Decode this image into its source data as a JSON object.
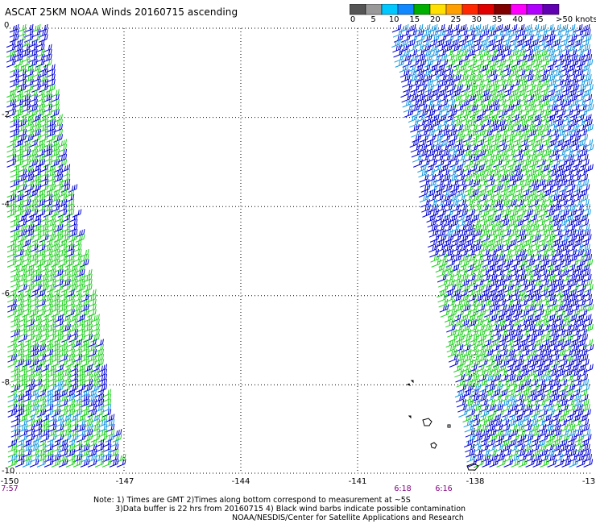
{
  "header": {
    "title": "ASCAT 25KM NOAA Winds 20160715 ascending"
  },
  "color_scale": {
    "units_label": ">50 knots",
    "labels": [
      "0",
      "5",
      "10",
      "15",
      "20",
      "25",
      "30",
      "35",
      "40",
      "45"
    ],
    "colors": [
      "#555555",
      "#999999",
      "#00c8ff",
      "#1088ff",
      "#00b000",
      "#ffe000",
      "#ffa000",
      "#ff2800",
      "#e00000",
      "#800000",
      "#ff00ff",
      "#b000ff",
      "#6000b0"
    ]
  },
  "map": {
    "lat_labels": [
      "0",
      "-2",
      "-4",
      "-6",
      "-8",
      "-10"
    ],
    "lon_labels": [
      "-150",
      "-147",
      "-144",
      "-141",
      "-138",
      "-13"
    ],
    "times": [
      "7:57",
      "6:18",
      "6:16"
    ]
  },
  "notes": {
    "line1": "Note: 1) Times are GMT 2)Times along bottom correspond to measurement at ~5S",
    "line2": "3)Data buffer is 22 hrs from 20160715 4) Black wind barbs indicate possible contamination",
    "line3": "NOAA/NESDIS/Center for Satellite Applications and Research"
  },
  "barb_colors": {
    "blue": "#0000d0",
    "green": "#20d020",
    "cyan": "#1898e0",
    "coast": "#000000"
  }
}
